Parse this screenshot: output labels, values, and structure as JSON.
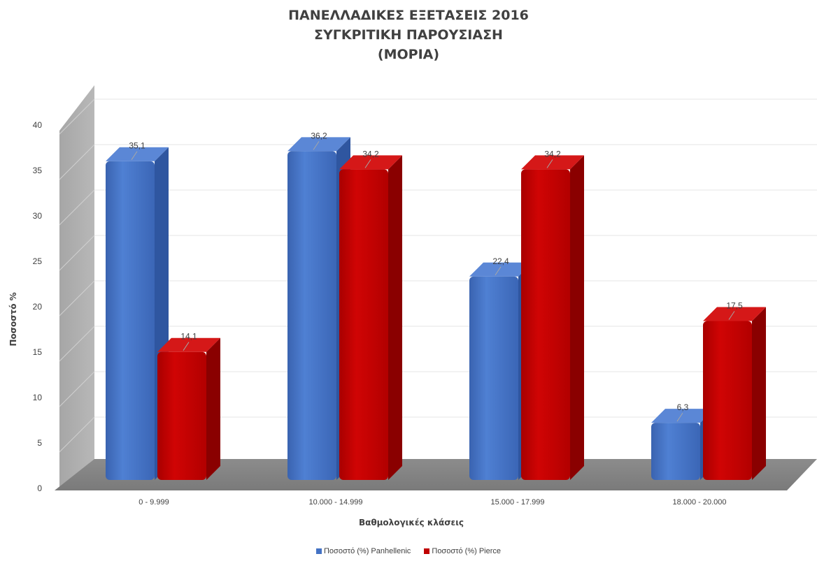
{
  "chart_data": {
    "type": "bar",
    "title_lines": [
      "ΠΑΝΕΛΛΑΔΙΚΕΣ ΕΞΕΤΑΣΕΙΣ 2016",
      "ΣΥΓΚΡΙΤΙΚΗ ΠΑΡΟΥΣΙΑΣΗ",
      "(ΜΟΡΙΑ)"
    ],
    "xlabel": "Βαθμολογικές κλάσεις",
    "ylabel": "Ποσοστό %",
    "ylim": [
      0,
      40
    ],
    "yticks": [
      "0",
      "5",
      "10",
      "15",
      "20",
      "25",
      "30",
      "35",
      "40"
    ],
    "categories": [
      "0 - 9.999",
      "10.000 - 14.999",
      "15.000 - 17.999",
      "18.000 - 20.000"
    ],
    "series": [
      {
        "name": "Ποσοστό (%) Panhellenic",
        "values": [
          35.1,
          36.2,
          22.4,
          6.3
        ],
        "labels": [
          "35,1",
          "36,2",
          "22,4",
          "6,3"
        ],
        "color": "#4472c4"
      },
      {
        "name": "Ποσοστό (%) Pierce",
        "values": [
          14.1,
          34.2,
          34.2,
          17.5
        ],
        "labels": [
          "14,1",
          "34,2",
          "34,2",
          "17,5"
        ],
        "color": "#c00000"
      }
    ],
    "grid": true,
    "style": "3d-clustered-column",
    "legend_position": "bottom"
  }
}
